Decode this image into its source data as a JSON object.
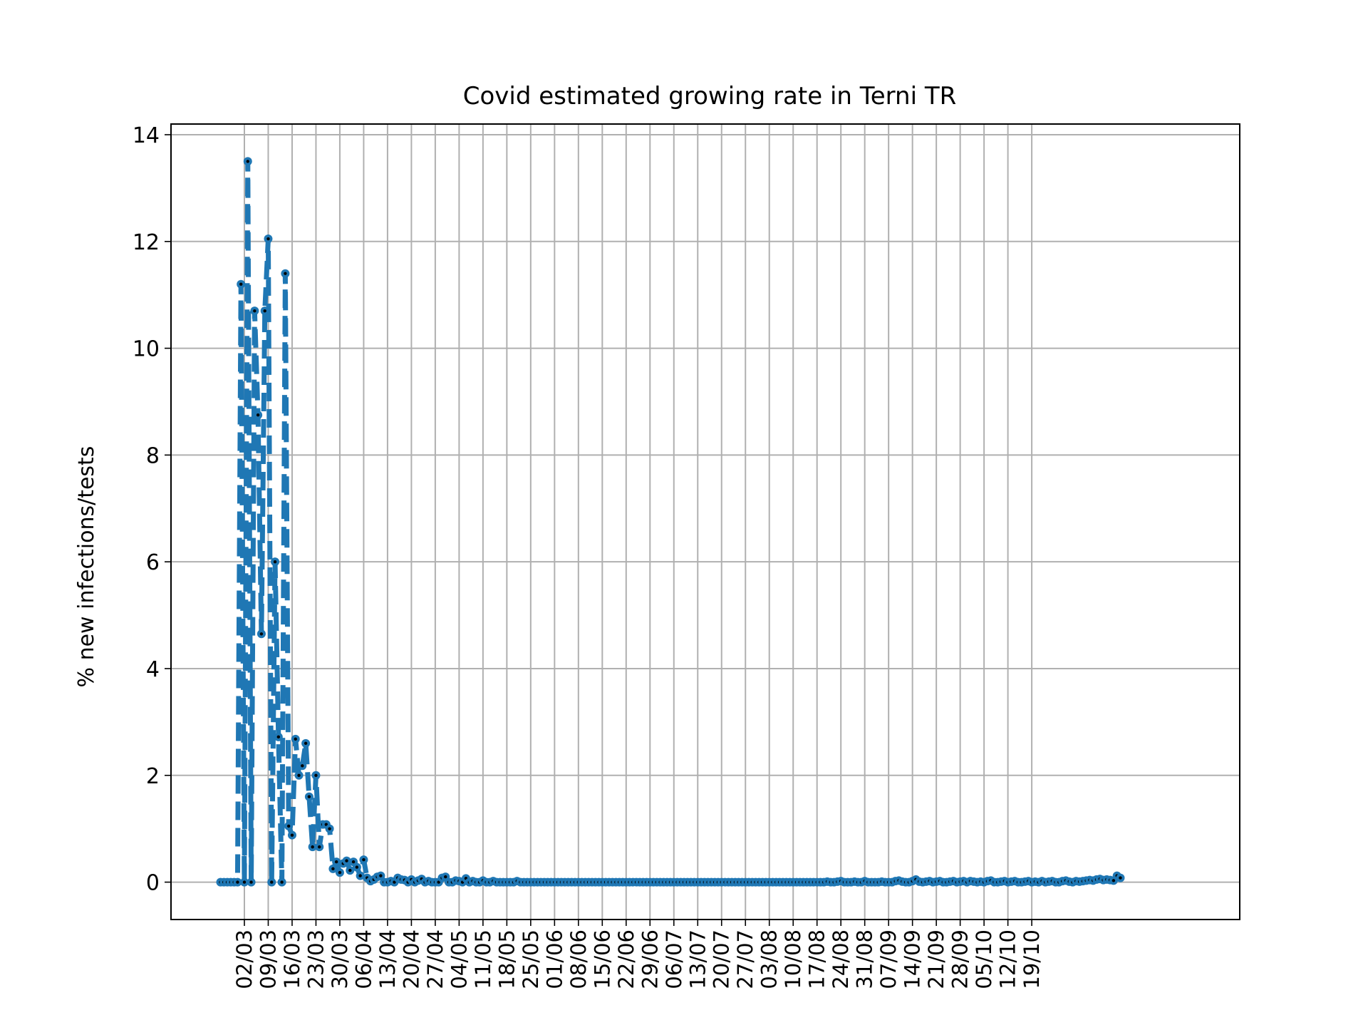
{
  "chart_data": {
    "type": "line",
    "title": "Covid estimated growing rate in Terni TR",
    "xlabel": "",
    "ylabel": "% new infections/tests",
    "ylim": [
      -0.7,
      14.2
    ],
    "yticks": [
      0,
      2,
      4,
      6,
      8,
      10,
      12,
      14
    ],
    "grid": true,
    "legend": "none",
    "colors": {
      "line": "#1f77b4",
      "marker": "#000000",
      "grid": "#b0b0b0"
    },
    "x_start": "24/02",
    "x_tick_labels": [
      "02/03",
      "09/03",
      "16/03",
      "23/03",
      "30/03",
      "06/04",
      "13/04",
      "20/04",
      "27/04",
      "04/05",
      "11/05",
      "18/05",
      "25/05",
      "01/06",
      "08/06",
      "15/06",
      "22/06",
      "29/06",
      "06/07",
      "13/07",
      "20/07",
      "27/07",
      "03/08",
      "10/08",
      "17/08",
      "24/08",
      "31/08",
      "07/09",
      "14/09",
      "21/09",
      "28/09",
      "05/10",
      "12/10",
      "19/10"
    ],
    "series": [
      {
        "values": [
          0,
          0,
          0,
          0,
          0,
          0,
          11.2,
          0,
          13.5,
          0,
          10.7,
          8.75,
          4.65,
          10.7,
          12.05,
          0,
          6.0,
          2.72,
          0,
          11.4,
          1.05,
          0.88,
          2.68,
          2.0,
          2.18,
          2.6,
          1.6,
          0.66,
          2.0,
          0.66,
          1.08,
          1.08,
          1.0,
          0.25,
          0.38,
          0.18,
          0.35,
          0.4,
          0.22,
          0.38,
          0.28,
          0.12,
          0.42,
          0.08,
          0.02,
          0.05,
          0.1,
          0.12,
          0.0,
          0.0,
          0.02,
          0.0,
          0.08,
          0.05,
          0.04,
          0.0,
          0.05,
          0.0,
          0.03,
          0.06,
          0.0,
          0.02,
          0.0,
          0.0,
          0.0,
          0.08,
          0.1,
          0.0,
          0.0,
          0.03,
          0.02,
          0.0,
          0.07,
          0.0,
          0.02,
          0.0,
          0.0,
          0.03,
          0.0,
          0.0,
          0.02,
          0.0,
          0.0,
          0.0,
          0.0,
          0.0,
          0.0,
          0.02,
          0.0,
          0.0,
          0.0,
          0.0,
          0.0,
          0.0,
          0.0,
          0.0,
          0.0,
          0.0,
          0.0,
          0.0,
          0.0,
          0.0,
          0.0,
          0.0,
          0.0,
          0.0,
          0.0,
          0.0,
          0.0,
          0.0,
          0.0,
          0.0,
          0.0,
          0.0,
          0.0,
          0.0,
          0.0,
          0.0,
          0.0,
          0.0,
          0.0,
          0.0,
          0.0,
          0.0,
          0.0,
          0.0,
          0.0,
          0.0,
          0.0,
          0.0,
          0.0,
          0.0,
          0.0,
          0.0,
          0.0,
          0.0,
          0.0,
          0.0,
          0.0,
          0.0,
          0.0,
          0.0,
          0.0,
          0.0,
          0.0,
          0.0,
          0.0,
          0.0,
          0.0,
          0.0,
          0.0,
          0.0,
          0.0,
          0.0,
          0.0,
          0.0,
          0.0,
          0.0,
          0.0,
          0.0,
          0.0,
          0.0,
          0.0,
          0.0,
          0.0,
          0.0,
          0.0,
          0.0,
          0.0,
          0.0,
          0.0,
          0.0,
          0.0,
          0.0,
          0.0,
          0.0,
          0.0,
          0.0,
          0.01,
          0.0,
          0.0,
          0.01,
          0.02,
          0.0,
          0.0,
          0.0,
          0.01,
          0.0,
          0.0,
          0.02,
          0.0,
          0.0,
          0.0,
          0.0,
          0.01,
          0.0,
          0.0,
          0.0,
          0.02,
          0.03,
          0.01,
          0.0,
          0.0,
          0.02,
          0.05,
          0.01,
          0.0,
          0.01,
          0.02,
          0.0,
          0.01,
          0.02,
          0.0,
          0.0,
          0.01,
          0.02,
          0.0,
          0.01,
          0.02,
          0.0,
          0.02,
          0.01,
          0.0,
          0.01,
          0.0,
          0.02,
          0.03,
          0.0,
          0.0,
          0.01,
          0.02,
          0.0,
          0.01,
          0.02,
          0.0,
          0.0,
          0.01,
          0.02,
          0.0,
          0.01,
          0.0,
          0.02,
          0.0,
          0.01,
          0.02,
          0.0,
          0.0,
          0.02,
          0.03,
          0.01,
          0.0,
          0.02,
          0.01,
          0.02,
          0.03,
          0.04,
          0.03,
          0.05,
          0.06,
          0.04,
          0.05,
          0.04,
          0.03,
          0.12,
          0.08
        ]
      }
    ]
  }
}
